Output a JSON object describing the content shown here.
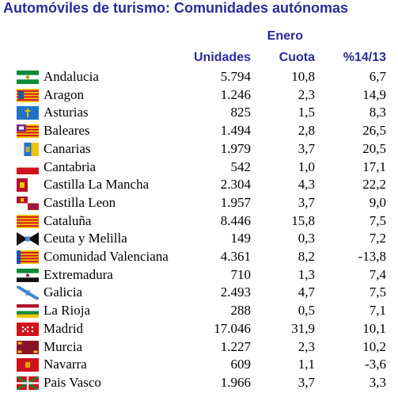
{
  "title": "Automóviles de turismo: Comunidades autónomas",
  "header": {
    "period": "Enero",
    "col_units": "Unidades",
    "col_share": "Cuota",
    "col_change": "%14/13"
  },
  "chart_data": {
    "type": "table",
    "title": "Automóviles de turismo: Comunidades autónomas",
    "period": "Enero",
    "columns": [
      "Unidades",
      "Cuota",
      "%14/13"
    ],
    "rows": [
      {
        "name": "Andalucia",
        "flag": "flag-andalucia",
        "unidades": "5.794",
        "cuota": "10,8",
        "var": "6,7"
      },
      {
        "name": "Aragon",
        "flag": "flag-aragon",
        "unidades": "1.246",
        "cuota": "2,3",
        "var": "14,9"
      },
      {
        "name": "Asturias",
        "flag": "flag-asturias",
        "unidades": "825",
        "cuota": "1,5",
        "var": "8,3"
      },
      {
        "name": "Baleares",
        "flag": "flag-baleares",
        "unidades": "1.494",
        "cuota": "2,8",
        "var": "26,5"
      },
      {
        "name": "Canarias",
        "flag": "flag-canarias",
        "unidades": "1.979",
        "cuota": "3,7",
        "var": "20,5"
      },
      {
        "name": "Cantabria",
        "flag": "flag-cantabria",
        "unidades": "542",
        "cuota": "1,0",
        "var": "17,1"
      },
      {
        "name": "Castilla La Mancha",
        "flag": "flag-castilla-la-mancha",
        "unidades": "2.304",
        "cuota": "4,3",
        "var": "22,2"
      },
      {
        "name": "Castilla Leon",
        "flag": "flag-castilla-leon",
        "unidades": "1.957",
        "cuota": "3,7",
        "var": "9,0"
      },
      {
        "name": "Cataluña",
        "flag": "flag-cataluna",
        "unidades": "8.446",
        "cuota": "15,8",
        "var": "7,5"
      },
      {
        "name": "Ceuta y Melilla",
        "flag": "flag-ceuta-melilla",
        "unidades": "149",
        "cuota": "0,3",
        "var": "7,2"
      },
      {
        "name": "Comunidad Valenciana",
        "flag": "flag-valenciana",
        "unidades": "4.361",
        "cuota": "8,2",
        "var": "-13,8"
      },
      {
        "name": "Extremadura",
        "flag": "flag-extremadura",
        "unidades": "710",
        "cuota": "1,3",
        "var": "7,4"
      },
      {
        "name": "Galicia",
        "flag": "flag-galicia",
        "unidades": "2.493",
        "cuota": "4,7",
        "var": "7,5"
      },
      {
        "name": "La Rioja",
        "flag": "flag-la-rioja",
        "unidades": "288",
        "cuota": "0,5",
        "var": "7,1"
      },
      {
        "name": "Madrid",
        "flag": "flag-madrid",
        "unidades": "17.046",
        "cuota": "31,9",
        "var": "10,1"
      },
      {
        "name": "Murcia",
        "flag": "flag-murcia",
        "unidades": "1.227",
        "cuota": "2,3",
        "var": "10,2"
      },
      {
        "name": "Navarra",
        "flag": "flag-navarra",
        "unidades": "609",
        "cuota": "1,1",
        "var": "-3,6"
      },
      {
        "name": "Pais Vasco",
        "flag": "flag-pais-vasco",
        "unidades": "1.966",
        "cuota": "3,7",
        "var": "3,3"
      }
    ]
  },
  "colors": {
    "header_text": "#2a2a9a",
    "body_text": "#000000"
  }
}
